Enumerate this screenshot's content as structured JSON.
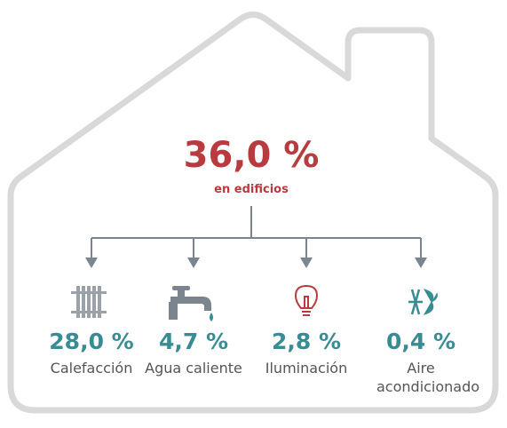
{
  "main": {
    "value": "36,0 %",
    "label": "en edificios"
  },
  "items": [
    {
      "value": "28,0 %",
      "label": "Calefacción"
    },
    {
      "value": "4,7 %",
      "label": "Agua caliente"
    },
    {
      "value": "2,8 %",
      "label": "Iluminación"
    },
    {
      "value": "0,4 %",
      "label": "Aire acondicionado"
    }
  ]
}
